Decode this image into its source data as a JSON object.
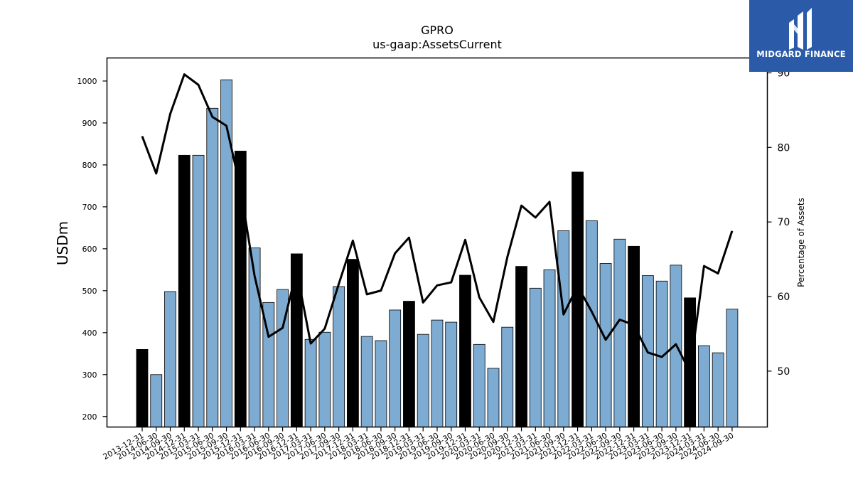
{
  "brand": {
    "name": "MIDGARD FINANCE",
    "bg_color": "#2a5aa8",
    "icon": "midgard-m-icon"
  },
  "colors": {
    "bar_normal": "#7eabd1",
    "bar_highlight": "#000000",
    "line": "#000000"
  },
  "chart_data": {
    "type": "bar",
    "title": "GPRO",
    "subtitle": "us-gaap:AssetsCurrent",
    "ylabel": "USDm",
    "y2label": "Percentage of Assets",
    "ylim": [
      175,
      1055
    ],
    "y2lim": [
      42.5,
      92
    ],
    "yticks": [
      200,
      300,
      400,
      500,
      600,
      700,
      800,
      900,
      1000
    ],
    "y2ticks": [
      50,
      60,
      70,
      80,
      90
    ],
    "categories": [
      "2013-12-31",
      "2014-06-30",
      "2014-09-30",
      "2014-12-31",
      "2015-03-31",
      "2015-06-30",
      "2015-09-30",
      "2015-12-31",
      "2016-03-31",
      "2016-06-30",
      "2016-09-30",
      "2016-12-31",
      "2017-03-31",
      "2017-06-30",
      "2017-09-30",
      "2017-12-31",
      "2018-03-31",
      "2018-06-30",
      "2018-09-30",
      "2018-12-31",
      "2019-03-31",
      "2019-06-30",
      "2019-09-30",
      "2019-12-31",
      "2020-03-31",
      "2020-06-30",
      "2020-09-30",
      "2020-12-31",
      "2021-03-31",
      "2021-06-30",
      "2021-09-30",
      "2021-12-31",
      "2022-03-31",
      "2022-06-30",
      "2022-09-30",
      "2022-12-31",
      "2023-03-31",
      "2023-06-30",
      "2023-09-30",
      "2023-12-31",
      "2024-03-31",
      "2024-06-30",
      "2024-09-30"
    ],
    "series": [
      {
        "kind": "bar",
        "axis": "left",
        "values": [
          360,
          300,
          498,
          823,
          823,
          935,
          1003,
          833,
          602,
          472,
          503,
          588,
          384,
          401,
          510,
          575,
          391,
          381,
          454,
          475,
          396,
          430,
          425,
          537,
          372,
          315,
          413,
          558,
          506,
          550,
          643,
          783,
          667,
          565,
          623,
          606,
          536,
          523,
          561,
          483,
          369,
          352,
          456
        ],
        "highlight": [
          true,
          false,
          false,
          true,
          false,
          false,
          false,
          true,
          false,
          false,
          false,
          true,
          false,
          false,
          false,
          true,
          false,
          false,
          false,
          true,
          false,
          false,
          false,
          true,
          false,
          false,
          false,
          true,
          false,
          false,
          false,
          true,
          false,
          false,
          false,
          true,
          false,
          false,
          false,
          true,
          false,
          false,
          false
        ]
      },
      {
        "kind": "line",
        "axis": "right",
        "values": [
          81.5,
          76.5,
          84.5,
          89.8,
          88.4,
          84.1,
          82.9,
          74.5,
          62.8,
          54.6,
          55.8,
          63.5,
          53.7,
          55.7,
          61.7,
          67.5,
          60.3,
          60.8,
          65.8,
          67.9,
          59.2,
          61.5,
          61.9,
          67.6,
          59.9,
          56.6,
          65.3,
          72.2,
          70.6,
          72.7,
          57.6,
          61.4,
          58.0,
          54.2,
          56.9,
          56.2,
          52.5,
          51.9,
          53.6,
          49.9,
          64.1,
          63.1,
          68.8
        ]
      }
    ],
    "legend": "none",
    "grid": false
  }
}
